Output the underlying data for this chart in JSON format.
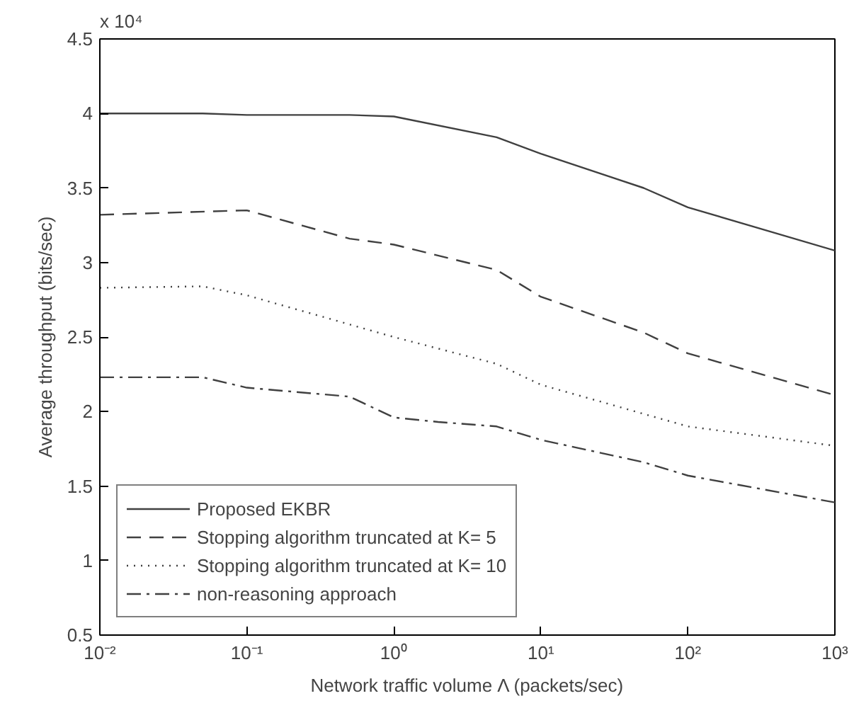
{
  "chart_data": {
    "type": "line",
    "xlabel": "Network traffic volume Λ (packets/sec)",
    "ylabel": "Average throughput (bits/sec)",
    "annotations": [
      "x 10⁴"
    ],
    "log": "x",
    "xlim": [
      0.01,
      1000
    ],
    "xticks": [
      {
        "value": 0.01,
        "label": "10⁻²"
      },
      {
        "value": 0.1,
        "label": "10⁻¹"
      },
      {
        "value": 1,
        "label": "10⁰"
      },
      {
        "value": 10,
        "label": "10¹"
      },
      {
        "value": 100,
        "label": "10²"
      },
      {
        "value": 1000,
        "label": "10³"
      }
    ],
    "ylim": [
      0.5,
      4.5
    ],
    "yticks": [
      0.5,
      1,
      1.5,
      2,
      2.5,
      3,
      3.5,
      4,
      4.5
    ],
    "grid": false,
    "legend": "bottom left",
    "series": [
      {
        "name": "Proposed EKBR",
        "color": "#404040",
        "line_style": "solid",
        "x": [
          0.01,
          0.05,
          0.1,
          0.5,
          1,
          5,
          10,
          50,
          100,
          1000
        ],
        "values": [
          4.0,
          4.0,
          3.99,
          3.99,
          3.98,
          3.84,
          3.73,
          3.5,
          3.37,
          3.08
        ]
      },
      {
        "name": "Stopping algorithm truncated at K= 5",
        "color": "#404040",
        "line_style": "dashed",
        "x": [
          0.01,
          0.1,
          0.5,
          1,
          5,
          10,
          50,
          100,
          1000
        ],
        "values": [
          3.32,
          3.35,
          3.16,
          3.12,
          2.95,
          2.77,
          2.53,
          2.39,
          2.11
        ]
      },
      {
        "name": "Stopping algorithm truncated at K= 10",
        "color": "#404040",
        "line_style": "dotted",
        "x": [
          0.01,
          0.05,
          0.1,
          1,
          5,
          10,
          100,
          1000
        ],
        "values": [
          2.83,
          2.84,
          2.78,
          2.5,
          2.32,
          2.18,
          1.9,
          1.77
        ]
      },
      {
        "name": "non-reasoning approach",
        "color": "#404040",
        "line_style": "dashdot",
        "x": [
          0.01,
          0.05,
          0.1,
          0.5,
          1,
          2,
          5,
          10,
          50,
          100,
          1000
        ],
        "values": [
          2.23,
          2.23,
          2.16,
          2.1,
          1.96,
          1.93,
          1.9,
          1.81,
          1.66,
          1.57,
          1.39
        ]
      }
    ]
  }
}
